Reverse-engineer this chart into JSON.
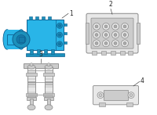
{
  "bg_color": "#ffffff",
  "p1_fill": "#29b5e8",
  "p1_mid": "#1c90bb",
  "p1_dark": "#157aaa",
  "p1_edge": "#0e6090",
  "gray_fill": "#e8e8e8",
  "gray_mid": "#cccccc",
  "gray_dark": "#aaaaaa",
  "gray_edge": "#888888",
  "label_fs": 5.5,
  "label_color": "#222222",
  "figsize": [
    2.0,
    1.47
  ],
  "dpi": 100
}
